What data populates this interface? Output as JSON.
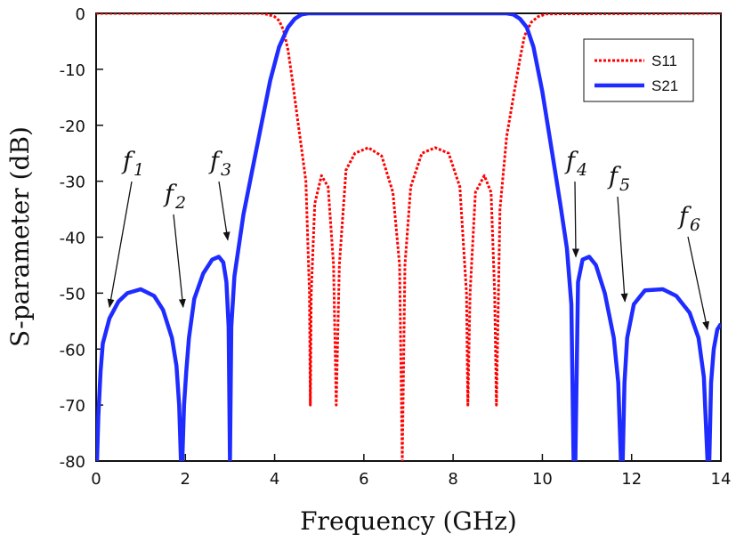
{
  "chart_data": {
    "type": "line",
    "xlabel": "Frequency (GHz)",
    "ylabel": "S-parameter (dB)",
    "xlim": [
      0,
      14
    ],
    "ylim": [
      -80,
      0
    ],
    "x_ticks": [
      0,
      2,
      4,
      6,
      8,
      10,
      12,
      14
    ],
    "y_ticks": [
      0,
      -10,
      -20,
      -30,
      -40,
      -50,
      -60,
      -70,
      -80
    ],
    "grid": false,
    "legend_position": "top-right",
    "series": [
      {
        "name": "S11",
        "color": "#ff0000",
        "style": "dotted",
        "x": [
          0,
          3.7,
          3.85,
          4.0,
          4.1,
          4.2,
          4.3,
          4.4,
          4.5,
          4.6,
          4.7,
          4.78,
          4.8,
          4.82,
          4.9,
          5.05,
          5.2,
          5.32,
          5.38,
          5.45,
          5.6,
          5.8,
          6.1,
          6.4,
          6.65,
          6.8,
          6.86,
          6.92,
          7.05,
          7.3,
          7.6,
          7.9,
          8.15,
          8.3,
          8.33,
          8.38,
          8.5,
          8.7,
          8.85,
          8.93,
          8.97,
          9.05,
          9.2,
          9.35,
          9.5,
          9.6,
          9.75,
          9.9,
          10.1,
          14
        ],
        "values": [
          0,
          0,
          -0.2,
          -0.6,
          -1.3,
          -3,
          -6.5,
          -12,
          -18,
          -24,
          -30,
          -50,
          -70,
          -50,
          -34,
          -29,
          -31,
          -45,
          -70,
          -45,
          -28,
          -25,
          -24,
          -25.5,
          -32,
          -45,
          -80,
          -45,
          -31,
          -25,
          -24,
          -25,
          -31,
          -50,
          -70,
          -50,
          -32,
          -29,
          -32,
          -50,
          -70,
          -35,
          -22,
          -15,
          -8,
          -4,
          -1.6,
          -0.6,
          -0.1,
          0
        ]
      },
      {
        "name": "S21",
        "color": "#1f2cff",
        "style": "solid",
        "x": [
          0.02,
          0.05,
          0.1,
          0.15,
          0.3,
          0.5,
          0.7,
          1.0,
          1.3,
          1.5,
          1.7,
          1.8,
          1.86,
          1.9,
          1.93,
          1.97,
          2.02,
          2.08,
          2.2,
          2.4,
          2.6,
          2.75,
          2.85,
          2.92,
          2.97,
          3.0,
          3.03,
          3.1,
          3.3,
          3.5,
          3.7,
          3.9,
          4.1,
          4.3,
          4.45,
          4.6,
          4.75,
          4.9,
          9.2,
          9.35,
          9.5,
          9.65,
          9.8,
          10.0,
          10.2,
          10.4,
          10.55,
          10.65,
          10.7,
          10.74,
          10.8,
          10.9,
          11.05,
          11.2,
          11.4,
          11.6,
          11.7,
          11.76,
          11.8,
          11.84,
          11.9,
          12.05,
          12.3,
          12.7,
          13.0,
          13.3,
          13.5,
          13.62,
          13.7,
          13.74,
          13.78,
          13.84,
          13.92,
          14.0
        ],
        "values": [
          -80,
          -72,
          -64,
          -59,
          -54.5,
          -51.5,
          -50,
          -49.3,
          -50.5,
          -53,
          -58,
          -63,
          -70,
          -80,
          -80,
          -70,
          -64,
          -58,
          -51,
          -46.5,
          -44,
          -43.5,
          -44.5,
          -48,
          -56,
          -80,
          -56,
          -47,
          -36,
          -28,
          -20,
          -12,
          -6,
          -2.5,
          -1,
          -0.2,
          0,
          0,
          0,
          -0.2,
          -1,
          -2.5,
          -6,
          -14,
          -24,
          -34,
          -42,
          -52,
          -80,
          -80,
          -48,
          -44,
          -43.5,
          -45,
          -50,
          -58,
          -66,
          -80,
          -80,
          -66,
          -58,
          -52,
          -49.5,
          -49.3,
          -50.5,
          -53.5,
          -58,
          -65,
          -80,
          -80,
          -66,
          -60,
          -56.5,
          -55.5
        ]
      }
    ],
    "annotations": [
      {
        "label": "f",
        "sub": "1",
        "target_x": 0.3,
        "target_y": -52.5
      },
      {
        "label": "f",
        "sub": "2",
        "target_x": 1.95,
        "target_y": -52.5
      },
      {
        "label": "f",
        "sub": "3",
        "target_x": 2.95,
        "target_y": -40.5
      },
      {
        "label": "f",
        "sub": "4",
        "target_x": 10.75,
        "target_y": -43.5
      },
      {
        "label": "f",
        "sub": "5",
        "target_x": 11.85,
        "target_y": -51.5
      },
      {
        "label": "f",
        "sub": "6",
        "target_x": 13.7,
        "target_y": -56.5
      }
    ]
  }
}
